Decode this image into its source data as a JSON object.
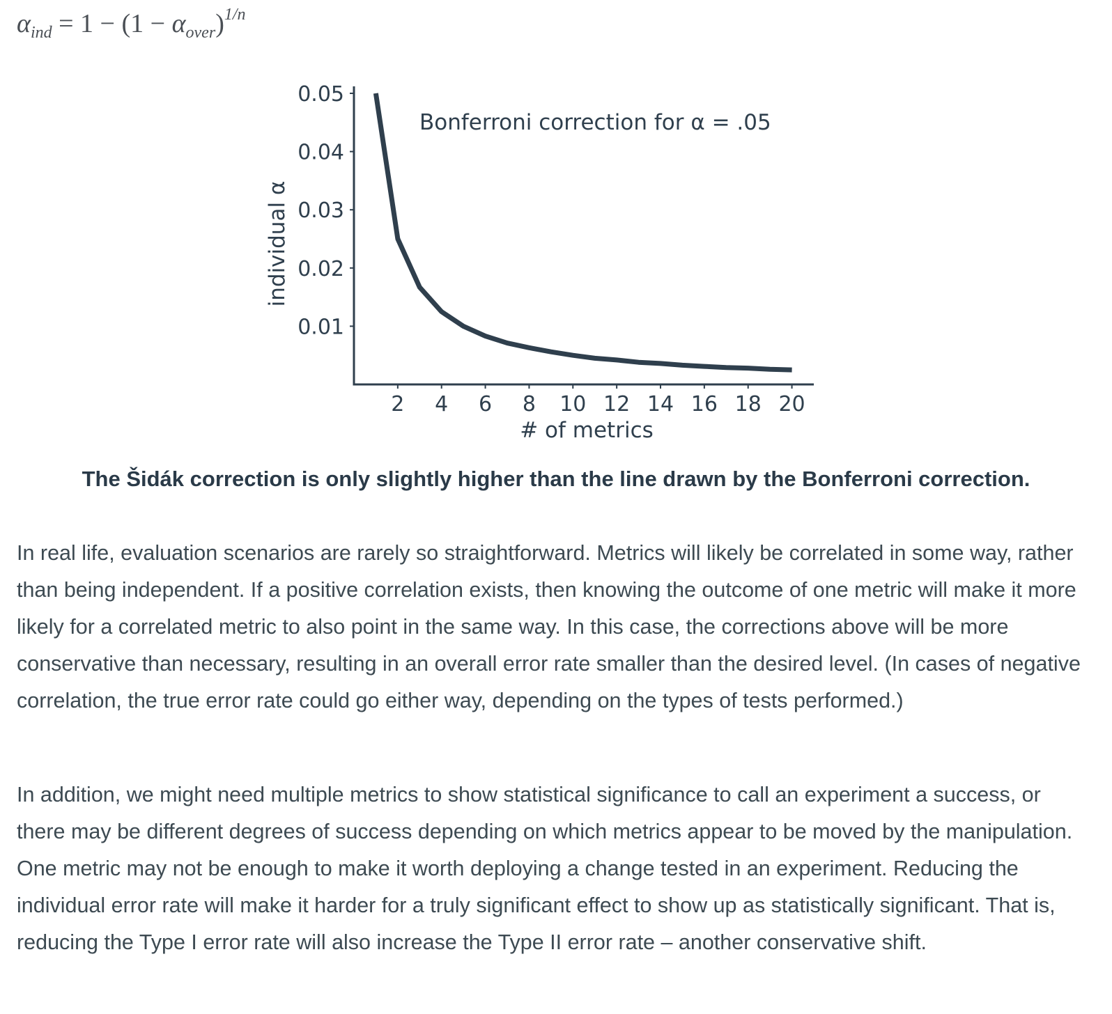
{
  "formula": {
    "alpha_symbol": "α",
    "ind_subscript": "ind",
    "rhs_prefix": " = 1 − (1 − ",
    "over_subscript": "over",
    "close_paren": ")",
    "exponent": "1/n"
  },
  "chart_data": {
    "type": "line",
    "annotation": "Bonferroni correction for α = .05",
    "xlabel": "# of metrics",
    "ylabel": "individual α",
    "xlim": [
      0,
      21
    ],
    "ylim": [
      0,
      0.0512
    ],
    "x_ticks": [
      2,
      4,
      6,
      8,
      10,
      12,
      14,
      16,
      18,
      20
    ],
    "y_ticks": [
      0.01,
      0.02,
      0.03,
      0.04,
      0.05
    ],
    "y_tick_labels": [
      "0.01",
      "0.02",
      "0.03",
      "0.04",
      "0.05"
    ],
    "grid": false,
    "line_color": "#2f3f4d",
    "series": [
      {
        "x": [
          1,
          2,
          3,
          4,
          5,
          6,
          7,
          8,
          9,
          10,
          11,
          12,
          13,
          14,
          15,
          16,
          17,
          18,
          19,
          20
        ],
        "values": [
          0.05,
          0.025,
          0.0167,
          0.0125,
          0.01,
          0.0083,
          0.0071,
          0.0063,
          0.0056,
          0.005,
          0.0045,
          0.0042,
          0.0038,
          0.0036,
          0.0033,
          0.0031,
          0.0029,
          0.0028,
          0.0026,
          0.0025
        ]
      }
    ]
  },
  "caption": "The Šidák correction is only slightly higher than the line drawn by the Bonferroni correction.",
  "paragraphs": [
    "In real life, evaluation scenarios are rarely so straightforward. Metrics will likely be correlated in some way, rather than being independent. If a positive correlation exists, then knowing the outcome of one metric will make it more likely for a correlated metric to also point in the same way. In this case, the corrections above will be more conservative than necessary, resulting in an overall error rate smaller than the desired level. (In cases of negative correlation, the true error rate could go either way, depending on the types of tests performed.)",
    "In addition, we might need multiple metrics to show statistical significance to call an experiment a success, or there may be different degrees of success depending on which metrics appear to be moved by the manipulation. One metric may not be enough to make it worth deploying a change tested in an experiment. Reducing the individual error rate will make it harder for a truly significant effect to show up as statistically significant. That is, reducing the Type I error rate will also increase the Type II error rate – another conservative shift."
  ]
}
